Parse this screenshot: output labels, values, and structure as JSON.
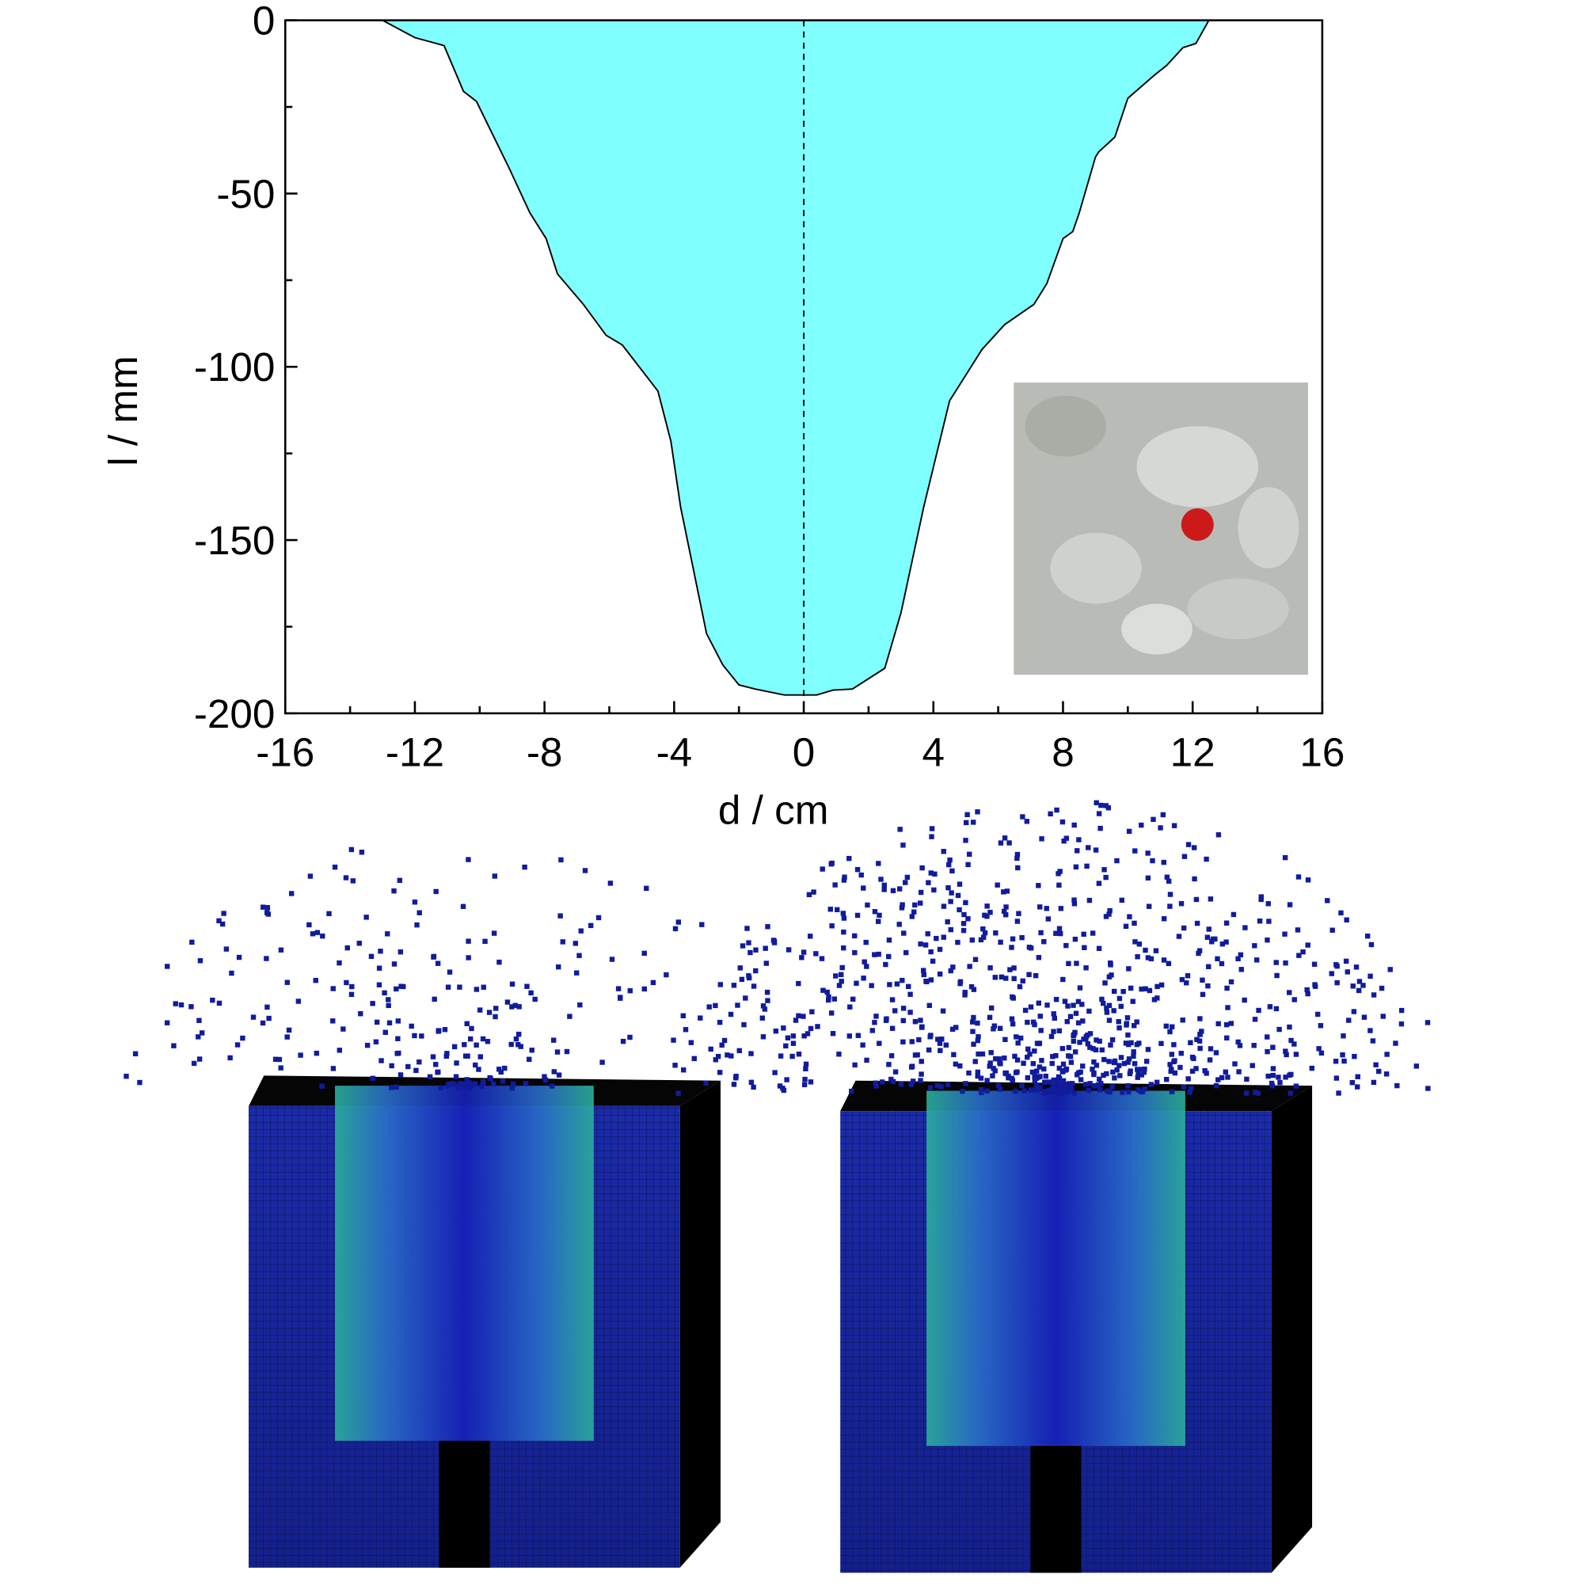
{
  "chart_data": {
    "type": "area",
    "x": [
      -13.0,
      -12.0,
      -11.1,
      -10.5,
      -10.1,
      -9.1,
      -8.45,
      -7.95,
      -7.6,
      -6.8,
      -6.1,
      -5.6,
      -4.5,
      -4.1,
      -3.8,
      -3.35,
      -3.0,
      -2.5,
      -2.0,
      -1.5,
      -0.6,
      0.4,
      0.9,
      1.5,
      2.5,
      3.0,
      3.7,
      4.5,
      5.5,
      6.2,
      7.1,
      7.5,
      8.0,
      8.3,
      8.5,
      9.0,
      9.1,
      9.6,
      10.0,
      10.8,
      11.2,
      11.7,
      12.1,
      12.5
    ],
    "series": [
      {
        "color": "#80ffff",
        "values": [
          0,
          -5,
          -7.3,
          -20.5,
          -23.4,
          -42.5,
          -55.6,
          -63,
          -73.2,
          -82,
          -90.9,
          -93.7,
          -107,
          -121.5,
          -140.5,
          -161,
          -177,
          -186,
          -191.8,
          -193,
          -194.7,
          -194.7,
          -193.3,
          -193,
          -187,
          -171,
          -140.5,
          -109.8,
          -95,
          -87.8,
          -82,
          -76,
          -63,
          -61,
          -55.6,
          -39.5,
          -38,
          -33.7,
          -22.5,
          -16,
          -13,
          -7.9,
          -6.7,
          0
        ]
      }
    ],
    "xlabel": "d / cm",
    "ylabel": "l / mm",
    "xlim": [
      -16,
      16
    ],
    "xticks": [
      -16,
      -12,
      -8,
      -4,
      0,
      4,
      8,
      12,
      16
    ],
    "xminor": [
      -14,
      -10,
      -6,
      -2,
      2,
      6,
      10,
      14
    ],
    "ylim": [
      -200,
      0
    ],
    "yticks": [
      0,
      -50,
      -100,
      -150,
      -200
    ],
    "yminor": [
      -25,
      -75,
      -125,
      -175
    ],
    "reference_x": 0
  }
}
